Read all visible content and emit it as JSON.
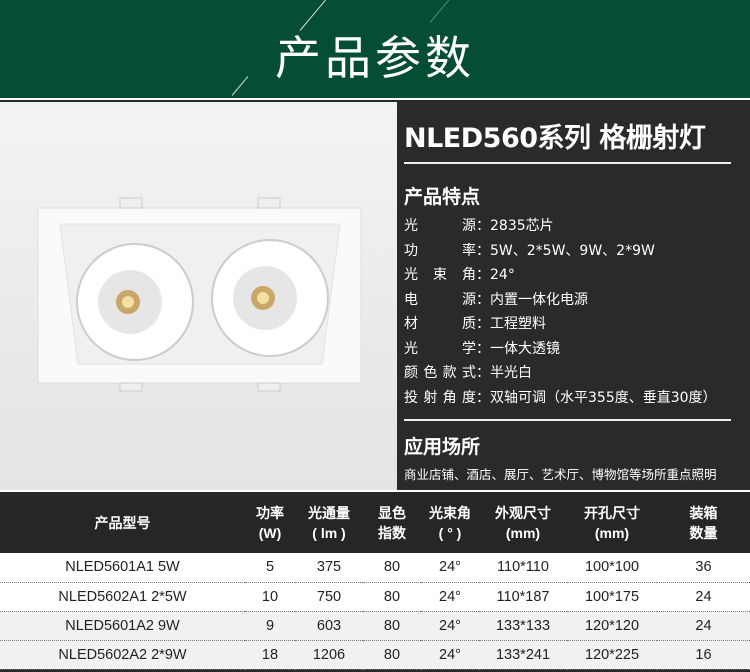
{
  "banner": {
    "title": "产品参数"
  },
  "product": {
    "title": "NLED560系列 格栅射灯"
  },
  "features": {
    "heading": "产品特点",
    "items": [
      {
        "key": "光源",
        "value": "2835芯片"
      },
      {
        "key": "功率",
        "value": "5W、2*5W、9W、2*9W"
      },
      {
        "key": "光束角",
        "value": "24°"
      },
      {
        "key": "电源",
        "value": "内置一体化电源"
      },
      {
        "key": "材质",
        "value": "工程塑料"
      },
      {
        "key": "光学",
        "value": "一体大透镜"
      },
      {
        "key": "颜色款式",
        "value": "半光白"
      },
      {
        "key": "投射角度",
        "value": "双轴可调（水平355度、垂直30度）"
      }
    ]
  },
  "application": {
    "heading": "应用场所",
    "text": "商业店铺、酒店、展厅、艺术厅、博物馆等场所重点照明"
  },
  "table": {
    "headers": [
      [
        "产品型号"
      ],
      [
        "功率",
        "(W)"
      ],
      [
        "光通量",
        "( lm )"
      ],
      [
        "显色",
        "指数"
      ],
      [
        "光束角",
        "( ° )"
      ],
      [
        "外观尺寸",
        "(mm)"
      ],
      [
        "开孔尺寸",
        "(mm)"
      ],
      [
        "装箱",
        "数量"
      ]
    ],
    "rows": [
      [
        "NLED5601A1 5W",
        "5",
        "375",
        "80",
        "24°",
        "110*110",
        "100*100",
        "36"
      ],
      [
        "NLED5602A1 2*5W",
        "10",
        "750",
        "80",
        "24°",
        "110*187",
        "100*175",
        "24"
      ],
      [
        "NLED5601A2 9W",
        "9",
        "603",
        "80",
        "24°",
        "133*133",
        "120*120",
        "24"
      ],
      [
        "NLED5602A2 2*9W",
        "18",
        "1206",
        "80",
        "24°",
        "133*241",
        "120*225",
        "16"
      ]
    ]
  },
  "colors": {
    "banner": "#054d33",
    "panel": "#2a2a2a"
  }
}
